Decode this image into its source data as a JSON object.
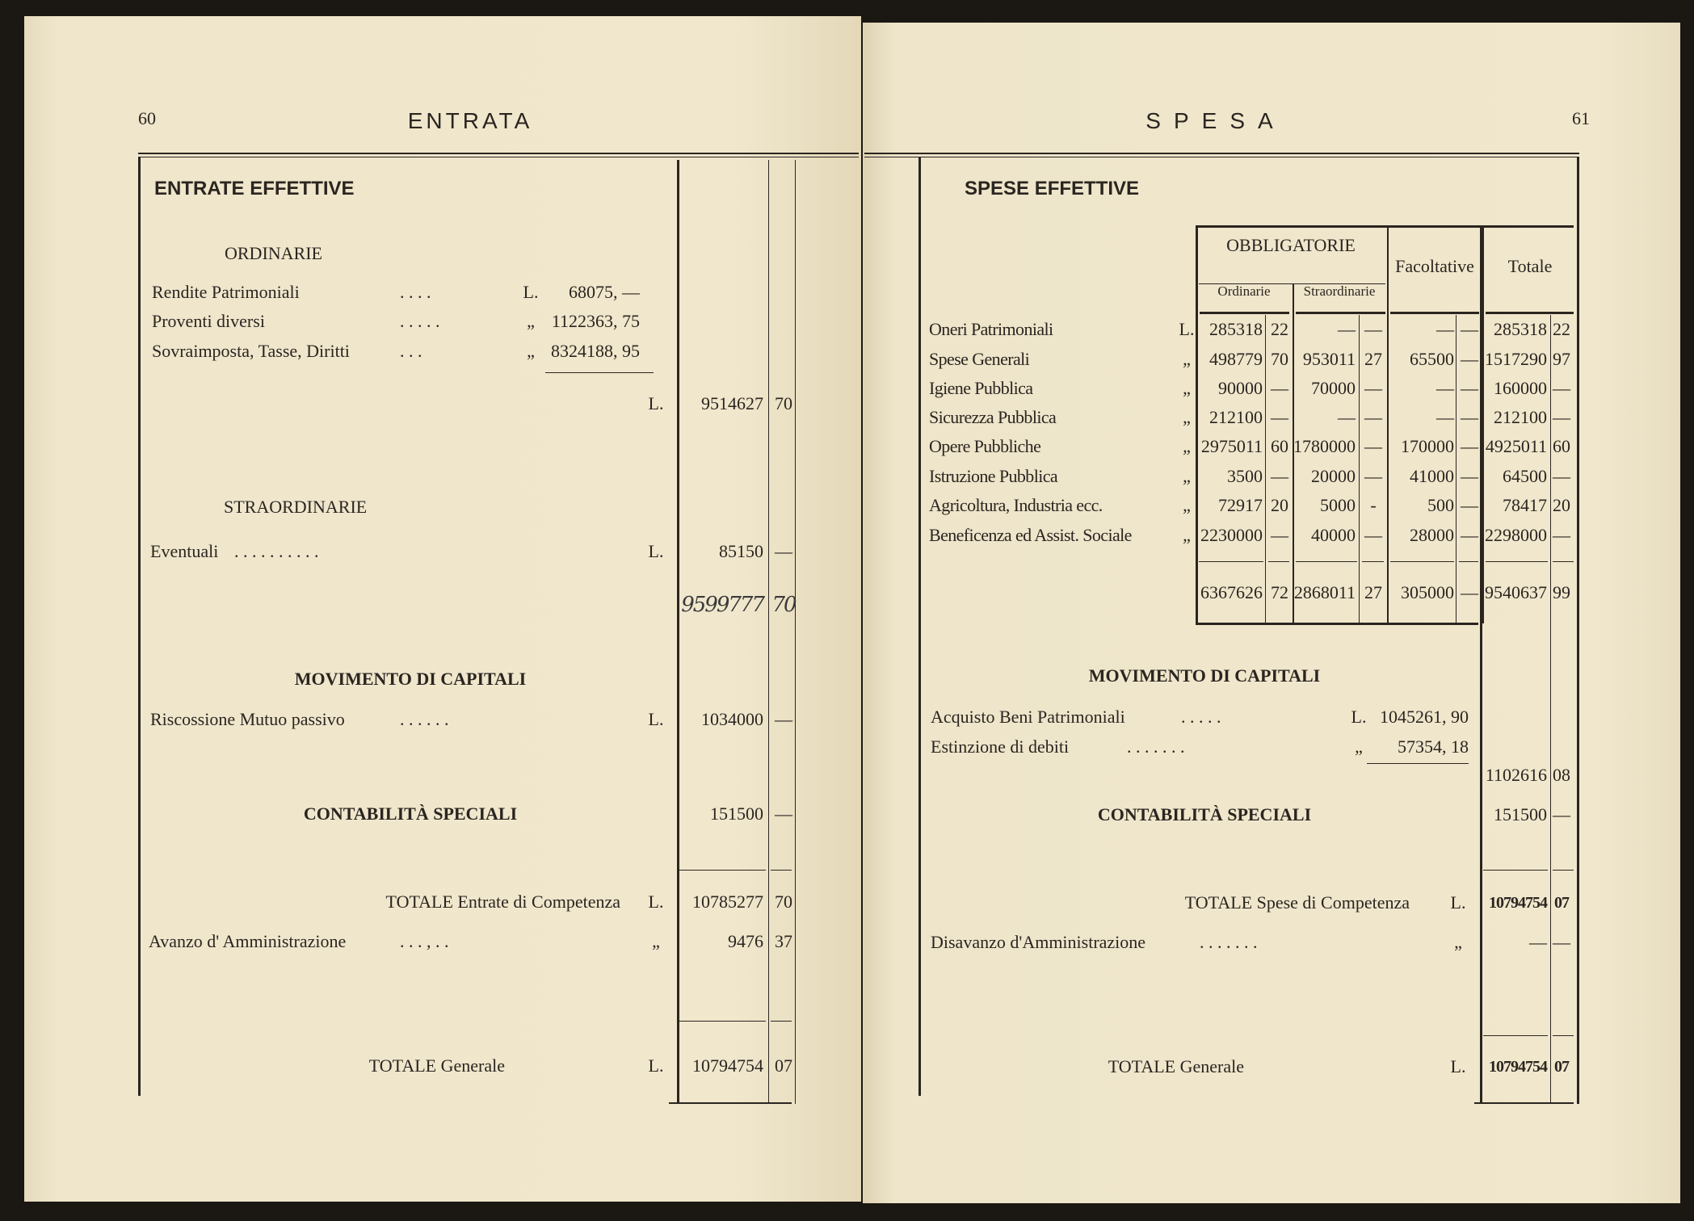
{
  "left": {
    "page_number": "60",
    "header": "ENTRATA",
    "section_title": "ENTRATE EFFETTIVE",
    "ordinarie": {
      "title": "ORDINARIE",
      "items": [
        {
          "label": "Rendite Patrimoniali",
          "dots": ".     .     .     .",
          "currency": "L.",
          "amount": "68075, —"
        },
        {
          "label": "Proventi diversi",
          "dots": ".     .     .     .     .",
          "currency": "„",
          "amount": "1122363, 75"
        },
        {
          "label": "Sovraimposta, Tasse, Diritti",
          "dots": ".     .     .",
          "currency": "„",
          "amount": "8324188, 95"
        }
      ],
      "subtotal": {
        "currency": "L.",
        "lire": "9514627",
        "cents": "70"
      }
    },
    "straordinarie": {
      "title": "STRAORDINARIE",
      "item": {
        "label": "Eventuali",
        "dots": ".     .     .     .     .     .     .     .     .     .",
        "currency": "L.",
        "lire": "85150",
        "cents": "—"
      }
    },
    "handwritten_total": {
      "lire": "9599777",
      "cents": "70"
    },
    "movimento": {
      "title": "MOVIMENTO DI CAPITALI",
      "item": {
        "label": "Riscossione Mutuo passivo",
        "dots": ".     .     .     .     .     .",
        "currency": "L.",
        "lire": "1034000",
        "cents": "—"
      }
    },
    "contabilita": {
      "title": "CONTABILITÀ SPECIALI",
      "lire": "151500",
      "cents": "—"
    },
    "totale_competenza": {
      "label": "TOTALE Entrate di Competenza",
      "currency": "L.",
      "lire": "10785277",
      "cents": "70"
    },
    "avanzo": {
      "label": "Avanzo d' Amministrazione",
      "dots": ".     .     .     ,     .     .",
      "currency": "„",
      "lire": "9476",
      "cents": "37"
    },
    "totale_generale": {
      "label": "TOTALE Generale",
      "currency": "L.",
      "lire": "10794754",
      "cents": "07"
    }
  },
  "right": {
    "page_number": "61",
    "header": "SPESA",
    "section_title": "SPESE EFFETTIVE",
    "table": {
      "headers": {
        "obbligatorie": "OBBLIGATORIE",
        "ordinarie": "Ordinarie",
        "straordinarie": "Straordinarie",
        "facoltative": "Facoltative",
        "totale": "Totale"
      },
      "rows": [
        {
          "label": "Oneri Patrimoniali",
          "currency": "L.",
          "values": [
            "285318",
            "22",
            "—",
            "—",
            "—",
            "—",
            "285318",
            "22"
          ]
        },
        {
          "label": "Spese Generali",
          "currency": "„",
          "values": [
            "498779",
            "70",
            "953011",
            "27",
            "65500",
            "—",
            "1517290",
            "97"
          ]
        },
        {
          "label": "Igiene Pubblica",
          "currency": "„",
          "values": [
            "90000",
            "—",
            "70000",
            "—",
            "—",
            "—",
            "160000",
            "—"
          ]
        },
        {
          "label": "Sicurezza Pubblica",
          "currency": "„",
          "values": [
            "212100",
            "—",
            "—",
            "—",
            "—",
            "—",
            "212100",
            "—"
          ]
        },
        {
          "label": "Opere Pubbliche",
          "currency": "„",
          "values": [
            "2975011",
            "60",
            "1780000",
            "—",
            "170000",
            "—",
            "4925011",
            "60"
          ]
        },
        {
          "label": "Istruzione Pubblica",
          "currency": "„",
          "values": [
            "3500",
            "—",
            "20000",
            "—",
            "41000",
            "—",
            "64500",
            "—"
          ]
        },
        {
          "label": "Agricoltura, Industria ecc.",
          "currency": "„",
          "values": [
            "72917",
            "20",
            "5000",
            "-",
            "500",
            "—",
            "78417",
            "20"
          ]
        },
        {
          "label": "Beneficenza ed Assist. Sociale",
          "currency": "„",
          "values": [
            "2230000",
            "—",
            "40000",
            "—",
            "28000",
            "—",
            "2298000",
            "—"
          ]
        }
      ],
      "totals": [
        "6367626",
        "72",
        "2868011",
        "27",
        "305000",
        "—",
        "9540637",
        "99"
      ]
    },
    "movimento": {
      "title": "MOVIMENTO DI CAPITALI",
      "items": [
        {
          "label": "Acquisto Beni Patrimoniali",
          "dots": ".     .     .     .     .",
          "currency": "L.",
          "amount": "1045261, 90"
        },
        {
          "label": "Estinzione di debiti",
          "dots": ".     .     .     .     .     .     .",
          "currency": "„",
          "amount": "57354, 18"
        }
      ],
      "subtotal": {
        "lire": "1102616",
        "cents": "08"
      }
    },
    "contabilita": {
      "title": "CONTABILITÀ SPECIALI",
      "lire": "151500",
      "cents": "—"
    },
    "totale_competenza": {
      "label": "TOTALE Spese di Competenza",
      "currency": "L.",
      "lire": "10794754",
      "cents": "07"
    },
    "disavanzo": {
      "label": "Disavanzo d'Amministrazione",
      "dots": ".     .     .     .     .     .     .",
      "currency": "„",
      "lire": "—",
      "cents": "—"
    },
    "totale_generale": {
      "label": "TOTALE Generale",
      "currency": "L.",
      "lire": "10794754",
      "cents": "07"
    }
  }
}
